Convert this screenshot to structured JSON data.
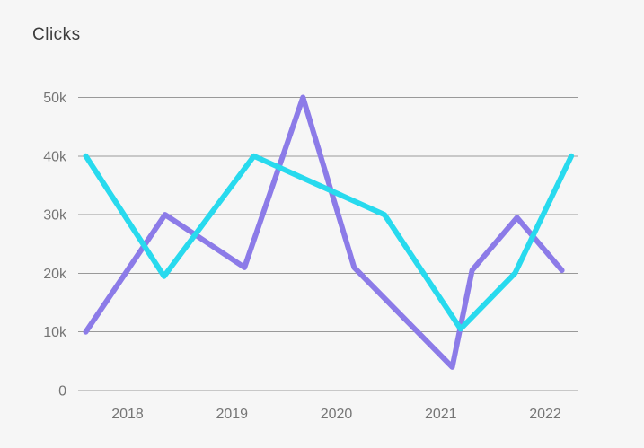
{
  "chart_data": {
    "type": "line",
    "title": "Clicks",
    "xlabel": "",
    "ylabel": "",
    "legend": "none",
    "grid": "horizontal",
    "background_color": "#f6f6f6",
    "grid_color": "#999999",
    "tick_text_color": "#757575",
    "title_color": "#3d3d3d",
    "xlim": [
      2017.53,
      2022.31
    ],
    "ylim": [
      0,
      50000
    ],
    "x_ticks": [
      2018,
      2019,
      2020,
      2021,
      2022
    ],
    "x_tick_labels": [
      "2018",
      "2019",
      "2020",
      "2021",
      "2022"
    ],
    "y_ticks": [
      0,
      10000,
      20000,
      30000,
      40000,
      50000
    ],
    "y_tick_labels": [
      "0",
      "10k",
      "20k",
      "30k",
      "40k",
      "50k"
    ],
    "series": [
      {
        "name": "purple",
        "color": "#8c7be8",
        "x": [
          2017.6,
          2018.36,
          2019.12,
          2019.68,
          2020.17,
          2021.11,
          2021.3,
          2021.73,
          2022.16
        ],
        "y": [
          10000,
          30000,
          21000,
          50000,
          21000,
          4000,
          20500,
          29500,
          20500
        ]
      },
      {
        "name": "cyan",
        "color": "#28daee",
        "x": [
          2017.6,
          2018.35,
          2019.21,
          2020.46,
          2021.19,
          2021.71,
          2022.25
        ],
        "y": [
          40000,
          19500,
          40000,
          30000,
          10500,
          20000,
          40000
        ]
      }
    ]
  }
}
